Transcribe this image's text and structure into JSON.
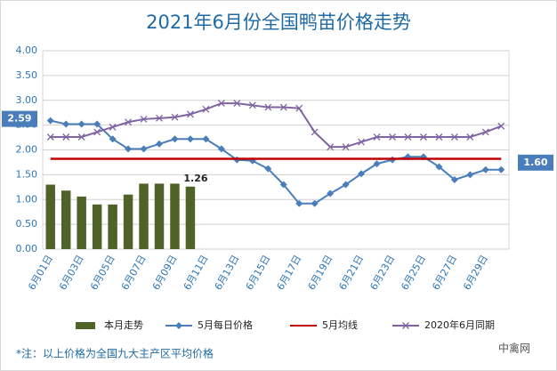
{
  "chart_data": {
    "type": "combo",
    "title": "2021年6月份全国鸭苗价格走势",
    "footnote": "*注：以上价格为全国九大主产区平均价格",
    "watermark": "中禽网",
    "categories": [
      "6月01日",
      null,
      "6月03日",
      null,
      "6月05日",
      null,
      "6月07日",
      null,
      "6月09日",
      null,
      "6月11日",
      null,
      "6月13日",
      null,
      "6月15日",
      null,
      "6月17日",
      null,
      "6月19日",
      null,
      "6月21日",
      null,
      "6月23日",
      null,
      "6月25日",
      null,
      "6月27日",
      null,
      "6月29日",
      null
    ],
    "ylim": [
      0,
      4
    ],
    "yticks": [
      {
        "value": 0,
        "label": "0.00"
      },
      {
        "value": 0.5,
        "label": "0.50"
      },
      {
        "value": 1,
        "label": "1.00"
      },
      {
        "value": 1.5,
        "label": "1.50"
      },
      {
        "value": 2,
        "label": "2.00"
      },
      {
        "value": 2.5,
        "label": "2.50"
      },
      {
        "value": 3,
        "label": "3.00"
      },
      {
        "value": 3.5,
        "label": "3.50"
      },
      {
        "value": 4,
        "label": "4.00"
      }
    ],
    "grid": true,
    "legend": "bottom",
    "series": [
      {
        "name": "本月走势",
        "type": "bar",
        "color": "#4f6228",
        "values": [
          1.3,
          1.18,
          1.06,
          0.9,
          0.9,
          1.1,
          1.32,
          1.32,
          1.32,
          1.26,
          null,
          null,
          null,
          null,
          null,
          null,
          null,
          null,
          null,
          null,
          null,
          null,
          null,
          null,
          null,
          null,
          null,
          null,
          null,
          null
        ],
        "value_labels": [
          null,
          null,
          null,
          null,
          null,
          null,
          null,
          null,
          null,
          "1.26",
          null,
          null,
          null,
          null,
          null,
          null,
          null,
          null,
          null,
          null,
          null,
          null,
          null,
          null,
          null,
          null,
          null,
          null,
          null,
          null
        ]
      },
      {
        "name": "5月每日价格",
        "type": "line",
        "marker": "diamond",
        "color": "#4a7ebb",
        "values": [
          2.59,
          2.52,
          2.52,
          2.52,
          2.22,
          2.02,
          2.02,
          2.12,
          2.22,
          2.22,
          2.22,
          2.02,
          1.8,
          1.78,
          1.62,
          1.3,
          0.92,
          0.92,
          1.12,
          1.3,
          1.52,
          1.72,
          1.8,
          1.86,
          1.86,
          1.66,
          1.4,
          1.5,
          1.6,
          1.6
        ],
        "value_labels": [
          "2.59",
          null,
          null,
          null,
          null,
          null,
          null,
          null,
          null,
          null,
          null,
          null,
          null,
          null,
          null,
          null,
          null,
          null,
          null,
          null,
          null,
          null,
          null,
          null,
          null,
          null,
          null,
          null,
          null,
          "1.60"
        ]
      },
      {
        "name": "5月均线",
        "type": "line",
        "marker": "none",
        "color": "#c00000",
        "values": [
          1.82,
          1.82,
          1.82,
          1.82,
          1.82,
          1.82,
          1.82,
          1.82,
          1.82,
          1.82,
          1.82,
          1.82,
          1.82,
          1.82,
          1.82,
          1.82,
          1.82,
          1.82,
          1.82,
          1.82,
          1.82,
          1.82,
          1.82,
          1.82,
          1.82,
          1.82,
          1.82,
          1.82,
          1.82,
          1.82
        ]
      },
      {
        "name": "2020年6月同期",
        "type": "line",
        "marker": "x",
        "color": "#8064a2",
        "values": [
          2.26,
          2.26,
          2.26,
          2.36,
          2.46,
          2.56,
          2.62,
          2.64,
          2.66,
          2.72,
          2.82,
          2.94,
          2.94,
          2.9,
          2.86,
          2.86,
          2.84,
          2.36,
          2.06,
          2.06,
          2.16,
          2.26,
          2.26,
          2.26,
          2.26,
          2.26,
          2.26,
          2.26,
          2.36,
          2.48
        ]
      }
    ]
  }
}
